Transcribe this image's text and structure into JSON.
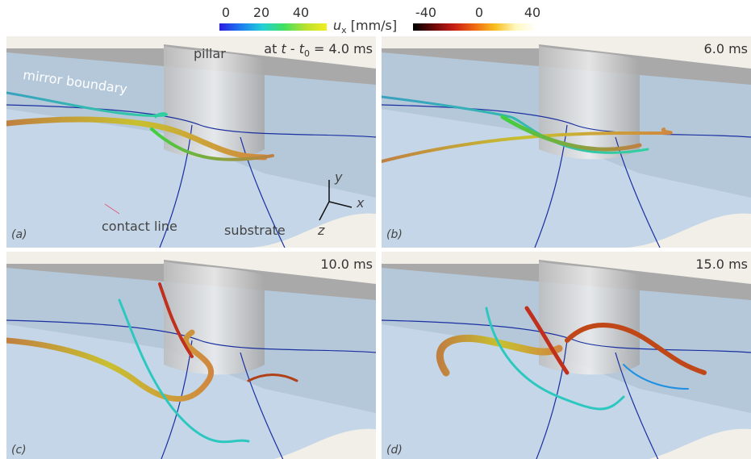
{
  "colorbars": {
    "left": {
      "ticks": [
        0,
        20,
        40
      ]
    },
    "label": {
      "symbol": "u",
      "subscript": "x",
      "unit": "[mm/s]"
    },
    "right": {
      "ticks": [
        -40,
        0,
        40
      ]
    }
  },
  "panels": [
    {
      "label": "(a)",
      "time": {
        "prefix": "at ",
        "var": "t",
        "mid": " - ",
        "var2": "t",
        "subscript": "0",
        "value": " = 4.0 ms"
      }
    },
    {
      "label": "(b)",
      "time": {
        "value": "6.0 ms"
      }
    },
    {
      "label": "(c)",
      "time": {
        "value": "10.0 ms"
      }
    },
    {
      "label": "(d)",
      "time": {
        "value": "15.0 ms"
      }
    }
  ],
  "annotations": {
    "pillar": "pillar",
    "mirror_boundary": "mirror boundary",
    "contact_line": "contact line",
    "substrate": "substrate",
    "axes": {
      "x": "x",
      "y": "y",
      "z": "z"
    }
  }
}
